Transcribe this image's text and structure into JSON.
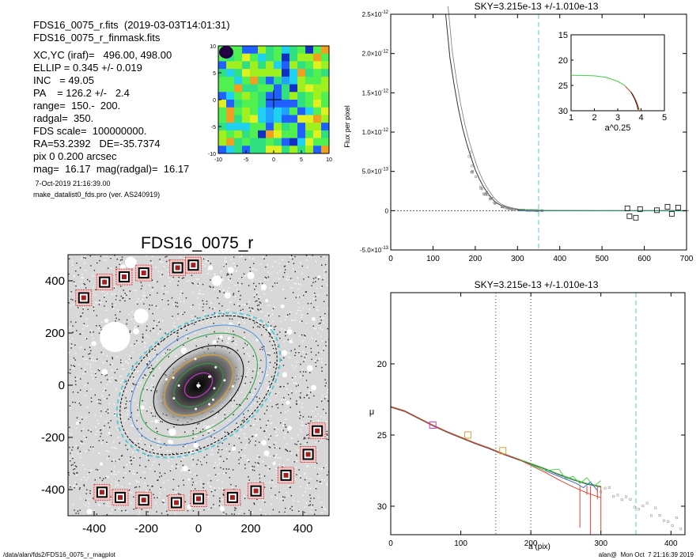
{
  "header": {
    "lines_top": [
      "FDS16_0075_r.fits  (2019-03-03T14:01:31)",
      "FDS16_0075_r_finmask.fits"
    ],
    "params": [
      "XC,YC (iraf)=   496.00, 498.00",
      "ELLIP = 0.345 +/- 0.019",
      "INC   = 49.05",
      "PA    = 126.2 +/-   2.4",
      "range=  150.-  200.",
      "radgal=  350.",
      "FDS scale=  100000000.",
      "RA=53.2392   DE=-35.7374",
      "pix 0 0.200 arcsec",
      "mag=  16.17  mag(radgal)=  16.17"
    ],
    "date_line": " 7-Oct-2019 21:16:39.00",
    "program_line": "make_datalist0_fds.pro (ver. AS240919)"
  },
  "footer": {
    "left": "/data/alan/fds2/FDS16_0075_r_magplot",
    "right": "alan@  Mon Oct  7 21:16:39 2019"
  },
  "colors": {
    "accent_cyan": "#55c8d8",
    "profile_gray": "#555555",
    "profile_red": "#e84030",
    "profile_green": "#40d040",
    "profile_blue": "#3060d0",
    "marker_magenta": "#cc33cc",
    "marker_orange": "#e0a030"
  },
  "chart_data": [
    {
      "id": "residual_map",
      "type": "heatmap",
      "title": "",
      "xlim": [
        -10,
        10
      ],
      "ylim": [
        -10,
        10
      ],
      "xticks": [
        "-10",
        "-5",
        "0",
        "5",
        "10"
      ],
      "yticks": [
        "-10",
        "-5",
        "0",
        "5",
        "10"
      ],
      "colormap": "rainbow (blue-green-yellow-red)",
      "crosshair_at": [
        0,
        0
      ]
    },
    {
      "id": "image_panel",
      "type": "scatter",
      "title": "FDS16_0075_r",
      "xlim": [
        -500,
        500
      ],
      "ylim": [
        -500,
        500
      ],
      "xticks": [
        "-400",
        "-200",
        "0",
        "200",
        "400"
      ],
      "yticks": [
        "-400",
        "-200",
        "0",
        "200",
        "400"
      ],
      "isophote_ellipse_axes": {
        "a_pix": 350,
        "b_pix": 229,
        "pa_deg": 126.2
      },
      "sky_boxes": [
        {
          "x": -440,
          "y": 335
        },
        {
          "x": -360,
          "y": 395
        },
        {
          "x": -285,
          "y": 415
        },
        {
          "x": -210,
          "y": 430
        },
        {
          "x": -80,
          "y": 450
        },
        {
          "x": -20,
          "y": 460
        },
        {
          "x": 455,
          "y": -175
        },
        {
          "x": 420,
          "y": -265
        },
        {
          "x": 335,
          "y": -345
        },
        {
          "x": 220,
          "y": -405
        },
        {
          "x": 130,
          "y": -430
        },
        {
          "x": 0,
          "y": -435
        },
        {
          "x": -85,
          "y": -450
        },
        {
          "x": -210,
          "y": -440
        },
        {
          "x": -300,
          "y": -430
        },
        {
          "x": -370,
          "y": -410
        }
      ]
    },
    {
      "id": "sky_profile",
      "type": "line",
      "title": "SKY=3.215e-13 +/-1.010e-13",
      "xlabel": "",
      "ylabel": "Flux per pixel",
      "xlim": [
        0,
        700
      ],
      "ylim": [
        -5e-13,
        2.5e-12
      ],
      "xticks": [
        "0",
        "100",
        "200",
        "300",
        "400",
        "500",
        "600",
        "700"
      ],
      "yticks": [
        {
          "v": -5e-13,
          "m": "-5.0",
          "e": "-13"
        },
        {
          "v": 0,
          "m": "0",
          "e": ""
        },
        {
          "v": 5e-13,
          "m": "5.0",
          "e": "-13"
        },
        {
          "v": 1e-12,
          "m": "1.0",
          "e": "-12"
        },
        {
          "v": 1.5e-12,
          "m": "1.5",
          "e": "-12"
        },
        {
          "v": 2e-12,
          "m": "2.0",
          "e": "-12"
        },
        {
          "v": 2.5e-12,
          "m": "2.5",
          "e": "-12"
        }
      ],
      "vline_dashed_cyan_at": 350,
      "series": [
        {
          "x": [
            130,
            140,
            150,
            160,
            170,
            180,
            190,
            200,
            210,
            220,
            230,
            240,
            250,
            260,
            270,
            280,
            290,
            300,
            320,
            340,
            360,
            400,
            450,
            500,
            550,
            600,
            650,
            700
          ],
          "y": [
            2.5e-12,
            1.95e-12,
            1.6e-12,
            1.3e-12,
            1.05e-12,
            8.5e-13,
            6.8e-13,
            5.2e-13,
            4e-13,
            3e-13,
            2.2e-13,
            1.5e-13,
            1e-13,
            7e-14,
            5e-14,
            3.5e-14,
            2.5e-14,
            1.5e-14,
            8e-15,
            3e-15,
            0.0,
            0.0,
            0.0,
            0.0,
            0.0,
            0.0,
            0.0,
            0.0
          ]
        }
      ],
      "sky_box_points": [
        [
          560,
          3e-14
        ],
        [
          565,
          -7e-14
        ],
        [
          580,
          -9e-14
        ],
        [
          590,
          2e-14
        ],
        [
          630,
          5e-15
        ],
        [
          655,
          5e-14
        ],
        [
          665,
          -4e-14
        ],
        [
          680,
          4e-14
        ]
      ],
      "inset": {
        "type": "line",
        "xlabel": "a^0.25",
        "xlim": [
          1,
          5
        ],
        "ylim": [
          30,
          15
        ],
        "xticks": [
          "1",
          "2",
          "3",
          "4",
          "5"
        ],
        "yticks": [
          "15",
          "20",
          "25",
          "30"
        ],
        "x": [
          1.0,
          1.5,
          2.0,
          2.5,
          3.0,
          3.3,
          3.6,
          3.75,
          3.85,
          3.9
        ],
        "y": [
          23.0,
          23.02,
          23.1,
          23.4,
          24.2,
          25.0,
          26.5,
          27.8,
          29.0,
          30.0
        ]
      }
    },
    {
      "id": "mu_profile",
      "type": "line",
      "title": "SKY=3.215e-13 +/-1.010e-13",
      "xlabel": "a (pix)",
      "ylabel": "μ",
      "xlim": [
        0,
        420
      ],
      "ylim": [
        32,
        15
      ],
      "xticks": [
        "0",
        "100",
        "200",
        "300",
        "400"
      ],
      "yticks": [
        "20",
        "25",
        "30"
      ],
      "vlines_dotted_at": [
        150,
        200
      ],
      "vline_dashed_cyan_at": 350,
      "series": [
        {
          "name": "",
          "x": [
            0,
            20,
            40,
            60,
            80,
            100,
            120,
            140,
            160,
            180,
            200,
            220,
            240,
            260,
            280,
            300
          ],
          "y": [
            23.0,
            23.3,
            23.8,
            24.3,
            24.75,
            25.15,
            25.55,
            25.9,
            26.3,
            26.65,
            27.0,
            27.35,
            27.75,
            28.1,
            28.4,
            28.6
          ]
        }
      ],
      "markers": [
        {
          "x": 60,
          "y": 24.3,
          "color": "magenta"
        },
        {
          "x": 110,
          "y": 25.0,
          "color": "orange"
        },
        {
          "x": 160,
          "y": 26.1,
          "color": "orange"
        }
      ]
    }
  ]
}
